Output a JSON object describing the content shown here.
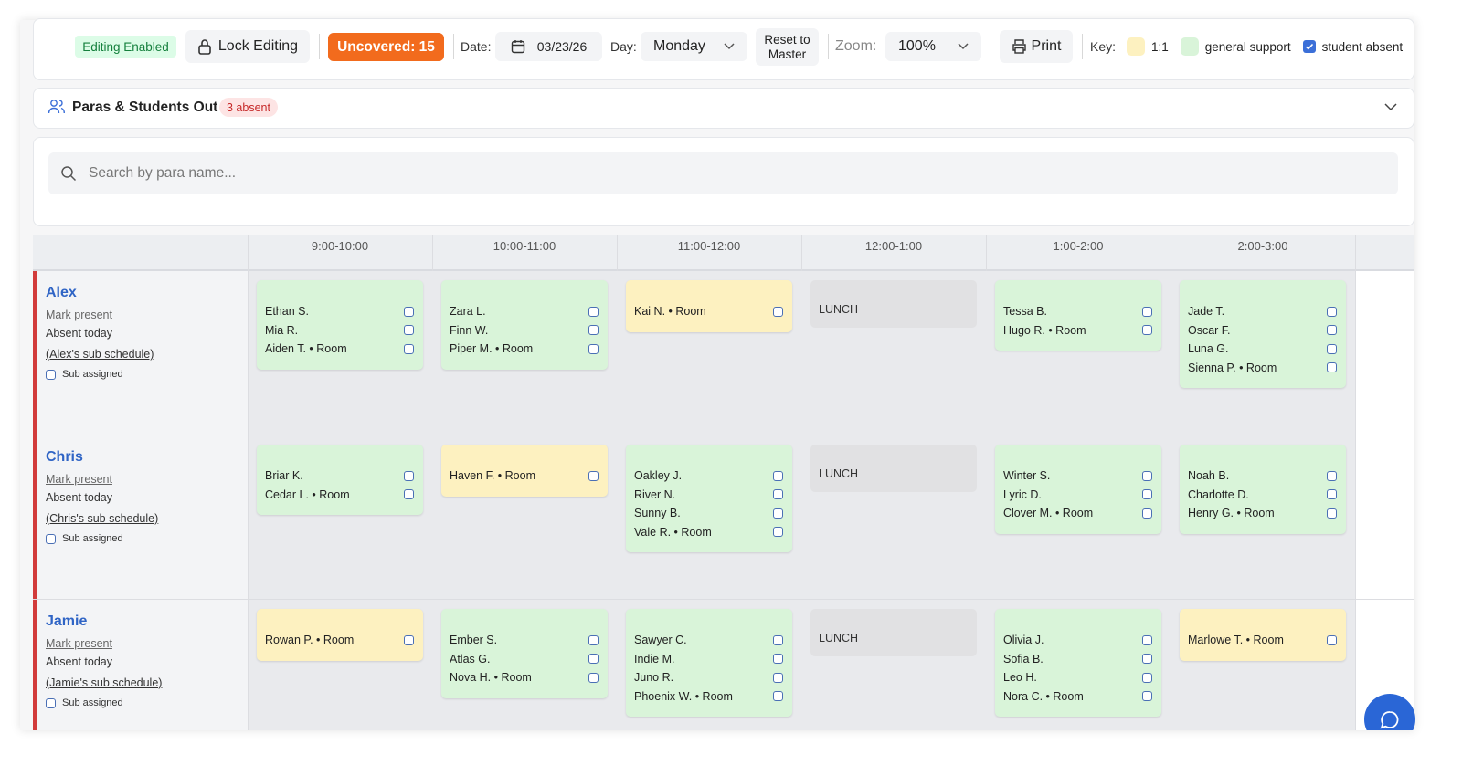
{
  "toolbar": {
    "editing_status": "Editing Enabled",
    "lock_button": "Lock Editing",
    "uncovered": "Uncovered: 15",
    "date_label": "Date:",
    "date": "03/23/26",
    "day_label": "Day:",
    "day": "Monday",
    "reset_button": "Reset to Master",
    "zoom_label": "Zoom:",
    "zoom": "100%",
    "print_button": "Print",
    "key_label": "Key:",
    "key_items": [
      {
        "label": "1:1",
        "color": "#fdf1c0"
      },
      {
        "label": "general support",
        "color": "#d9f4d9"
      },
      {
        "label": "student absent",
        "color": "#3b6fd8"
      }
    ]
  },
  "absence_panel": {
    "title": "Paras & Students Out",
    "badge": "3 absent"
  },
  "search": {
    "placeholder": "Search by para name..."
  },
  "schedule": {
    "time_slots": [
      "9:00-10:00",
      "10:00-11:00",
      "11:00-12:00",
      "12:00-1:00",
      "1:00-2:00",
      "2:00-3:00"
    ],
    "rows": [
      {
        "name": "Alex",
        "mark_present": "Mark present",
        "status": "Absent today",
        "sub_schedule": "(Alex's sub schedule)",
        "sub_assigned": "Sub assigned",
        "cells": [
          {
            "color": "#d9f4d9",
            "students": [
              "Ethan S.",
              "Mia R.",
              "Aiden T. • Room"
            ]
          },
          {
            "color": "#d9f4d9",
            "students": [
              "Zara L.",
              "Finn W.",
              "Piper M. • Room"
            ]
          },
          {
            "color": "#fdf1c0",
            "students": [
              "Kai N. • Room"
            ]
          },
          {
            "color": "#e1e1e3",
            "label": "LUNCH"
          },
          {
            "color": "#d9f4d9",
            "students": [
              "Tessa B.",
              "Hugo R. • Room"
            ]
          },
          {
            "color": "#d9f4d9",
            "students": [
              "Jade T.",
              "Oscar F.",
              "Luna G.",
              "Sienna P. • Room"
            ]
          }
        ]
      },
      {
        "name": "Chris",
        "mark_present": "Mark present",
        "status": "Absent today",
        "sub_schedule": "(Chris's sub schedule)",
        "sub_assigned": "Sub assigned",
        "cells": [
          {
            "color": "#d9f4d9",
            "students": [
              "Briar K.",
              "Cedar L. • Room"
            ]
          },
          {
            "color": "#fdf1c0",
            "students": [
              "Haven F. • Room"
            ]
          },
          {
            "color": "#d9f4d9",
            "students": [
              "Oakley J.",
              "River N.",
              "Sunny B.",
              "Vale R. • Room"
            ]
          },
          {
            "color": "#e1e1e3",
            "label": "LUNCH"
          },
          {
            "color": "#d9f4d9",
            "students": [
              "Winter S.",
              "Lyric D.",
              "Clover M. • Room"
            ]
          },
          {
            "color": "#d9f4d9",
            "students": [
              "Noah B.",
              "Charlotte D.",
              "Henry G. • Room"
            ]
          }
        ]
      },
      {
        "name": "Jamie",
        "mark_present": "Mark present",
        "status": "Absent today",
        "sub_schedule": "(Jamie's sub schedule)",
        "sub_assigned": "Sub assigned",
        "cells": [
          {
            "color": "#fdf1c0",
            "students": [
              "Rowan P. • Room"
            ]
          },
          {
            "color": "#d9f4d9",
            "students": [
              "Ember S.",
              "Atlas G.",
              "Nova H. • Room"
            ]
          },
          {
            "color": "#d9f4d9",
            "students": [
              "Sawyer C.",
              "Indie M.",
              "Juno R.",
              "Phoenix W. • Room"
            ]
          },
          {
            "color": "#e1e1e3",
            "label": "LUNCH"
          },
          {
            "color": "#d9f4d9",
            "students": [
              "Olivia J.",
              "Sofia B.",
              "Leo H.",
              "Nora C. • Room"
            ]
          },
          {
            "color": "#fdf1c0",
            "students": [
              "Marlowe T. • Room"
            ]
          }
        ]
      }
    ]
  }
}
